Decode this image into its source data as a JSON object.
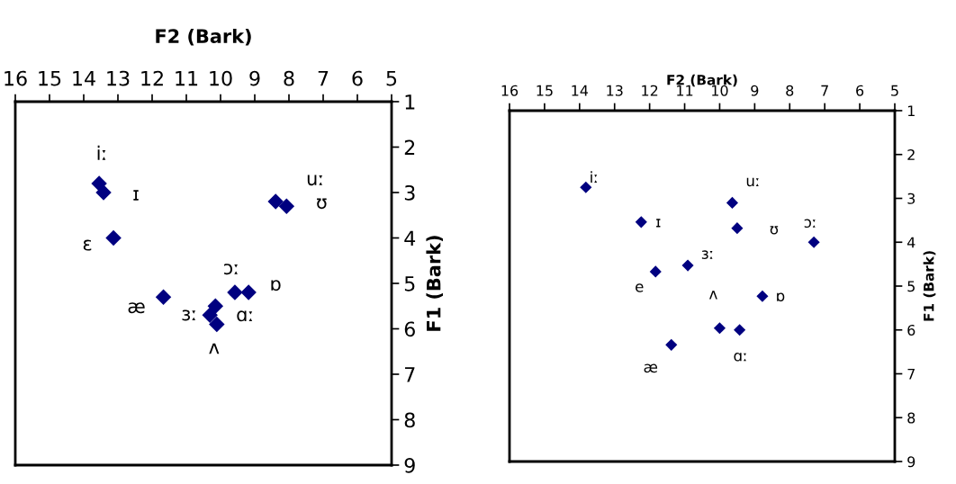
{
  "chart_data": [
    {
      "type": "scatter",
      "xlabel": "F2 (Bark)",
      "ylabel": "F1 (Bark)",
      "marker": "diamond",
      "color": "#000080",
      "grid": false,
      "x": [
        13.55,
        13.42,
        13.13,
        8.39,
        8.07,
        11.67,
        9.58,
        9.18,
        10.31,
        10.15,
        10.11
      ],
      "values": [
        2.8,
        3.0,
        4.0,
        3.2,
        3.3,
        5.3,
        5.2,
        5.2,
        5.7,
        5.5,
        5.9
      ],
      "xlim": [
        16,
        5
      ],
      "xticks": [
        16,
        15,
        14,
        13,
        12,
        11,
        10,
        9,
        8,
        7,
        6,
        5
      ],
      "ylim": [
        9,
        1
      ],
      "yticks": [
        1,
        2,
        3,
        4,
        5,
        6,
        7,
        8,
        9
      ],
      "annotations": [
        {
          "text": "iː",
          "x": 13.55,
          "y": 2.8
        },
        {
          "text": "ɪ",
          "x": 13.42,
          "y": 3.0
        },
        {
          "text": "ɛ",
          "x": 13.13,
          "y": 4.0
        },
        {
          "text": "uː",
          "x": 8.39,
          "y": 3.2
        },
        {
          "text": "ʊ",
          "x": 8.07,
          "y": 3.3
        },
        {
          "text": "ɔː",
          "x": 9.58,
          "y": 5.2
        },
        {
          "text": "ɒ",
          "x": 9.18,
          "y": 5.2
        },
        {
          "text": "æ",
          "x": 11.67,
          "y": 5.3
        },
        {
          "text": "ɜː",
          "x": 10.31,
          "y": 5.7
        },
        {
          "text": "ɑː",
          "x": 10.15,
          "y": 5.5
        },
        {
          "text": "ʌ",
          "x": 10.11,
          "y": 5.9
        }
      ]
    },
    {
      "type": "scatter",
      "xlabel": "F2 (Bark)",
      "ylabel": "F1 (Bark)",
      "marker": "diamond",
      "color": "#000080",
      "grid": false,
      "x": [
        13.82,
        12.24,
        9.64,
        9.5,
        7.31,
        10.91,
        11.83,
        8.78,
        10.0,
        9.43,
        11.38
      ],
      "values": [
        2.75,
        3.54,
        3.1,
        3.68,
        4.0,
        4.53,
        4.67,
        5.23,
        5.96,
        6.0,
        6.34
      ],
      "xlim": [
        16,
        5
      ],
      "xticks": [
        16,
        15,
        14,
        13,
        12,
        11,
        10,
        9,
        8,
        7,
        6,
        5
      ],
      "ylim": [
        9,
        1
      ],
      "yticks": [
        1,
        2,
        3,
        4,
        5,
        6,
        7,
        8,
        9
      ],
      "annotations": [
        {
          "text": "iː",
          "x": 13.82,
          "y": 2.75
        },
        {
          "text": "ɪ",
          "x": 12.24,
          "y": 3.54
        },
        {
          "text": "uː",
          "x": 9.64,
          "y": 3.1
        },
        {
          "text": "ʊ",
          "x": 9.5,
          "y": 3.68
        },
        {
          "text": "ɔː",
          "x": 7.31,
          "y": 4.0
        },
        {
          "text": "ɜː",
          "x": 10.91,
          "y": 4.53
        },
        {
          "text": "e",
          "x": 11.83,
          "y": 4.67
        },
        {
          "text": "ʌ",
          "x": 10.0,
          "y": 5.96
        },
        {
          "text": "ɒ",
          "x": 8.78,
          "y": 5.23
        },
        {
          "text": "ɑː",
          "x": 9.43,
          "y": 6.0
        },
        {
          "text": "æ",
          "x": 11.38,
          "y": 6.34
        }
      ]
    }
  ]
}
